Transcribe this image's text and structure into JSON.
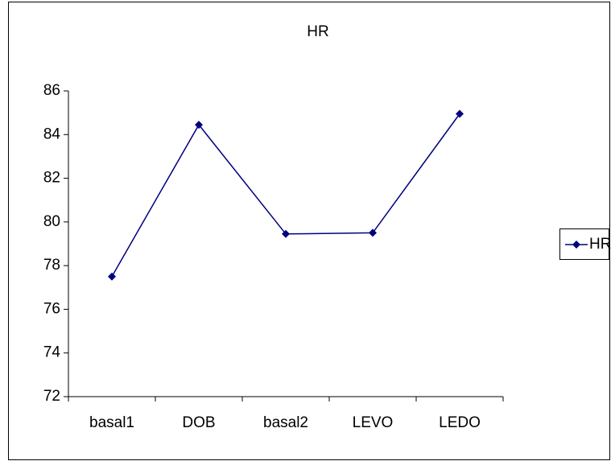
{
  "chart_data": {
    "type": "line",
    "title": "HR",
    "categories": [
      "basal1",
      "DOB",
      "basal2",
      "LEVO",
      "LEDO"
    ],
    "series": [
      {
        "name": "HR",
        "color": "#000080",
        "values": [
          77.5,
          84.45,
          79.45,
          79.5,
          84.95
        ]
      }
    ],
    "ylim": [
      72,
      86
    ],
    "yticks": [
      72,
      74,
      76,
      78,
      80,
      82,
      84,
      86
    ],
    "legend": "right"
  }
}
